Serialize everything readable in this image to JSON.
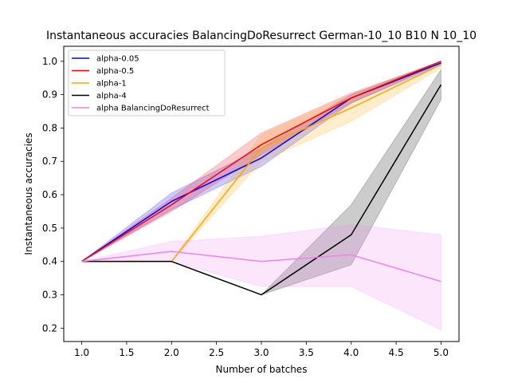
{
  "chart_data": {
    "type": "line",
    "title": "Instantaneous accuracies BalancingDoResurrect German-10_10 B10 N 10_10",
    "xlabel": "Number of batches",
    "ylabel": "Instantaneous accuracies",
    "xlim": [
      0.8,
      5.2
    ],
    "ylim": [
      0.16,
      1.045
    ],
    "xticks": [
      1.0,
      1.5,
      2.0,
      2.5,
      3.0,
      3.5,
      4.0,
      4.5,
      5.0
    ],
    "xtick_labels": [
      "1.0",
      "1.5",
      "2.0",
      "2.5",
      "3.0",
      "3.5",
      "4.0",
      "4.5",
      "5.0"
    ],
    "yticks": [
      0.2,
      0.3,
      0.4,
      0.5,
      0.6,
      0.7,
      0.8,
      0.9,
      1.0
    ],
    "ytick_labels": [
      "0.2",
      "0.3",
      "0.4",
      "0.5",
      "0.6",
      "0.7",
      "0.8",
      "0.9",
      "1.0"
    ],
    "grid": false,
    "legend_position": "top-left",
    "x": [
      1,
      2,
      3,
      4,
      5
    ],
    "series": [
      {
        "name": "alpha-0.05",
        "color": "#0000ff",
        "values": [
          0.4,
          0.58,
          0.71,
          0.89,
          0.995
        ],
        "lower": [
          0.4,
          0.555,
          0.685,
          0.875,
          0.99
        ],
        "upper": [
          0.4,
          0.605,
          0.74,
          0.9,
          1.0
        ]
      },
      {
        "name": "alpha-0.5",
        "color": "#ff0000",
        "values": [
          0.4,
          0.57,
          0.75,
          0.89,
          1.0
        ],
        "lower": [
          0.4,
          0.55,
          0.72,
          0.875,
          0.995
        ],
        "upper": [
          0.4,
          0.59,
          0.785,
          0.905,
          1.0
        ]
      },
      {
        "name": "alpha-1",
        "color": "#ffa500",
        "values": [
          0.4,
          0.4,
          0.74,
          0.86,
          0.99
        ],
        "lower": [
          0.4,
          0.4,
          0.7,
          0.82,
          0.98
        ],
        "upper": [
          0.4,
          0.4,
          0.78,
          0.9,
          1.0
        ]
      },
      {
        "name": "alpha-4",
        "color": "#000000",
        "values": [
          0.4,
          0.4,
          0.3,
          0.48,
          0.93
        ],
        "lower": [
          0.4,
          0.4,
          0.3,
          0.39,
          0.885
        ],
        "upper": [
          0.4,
          0.4,
          0.3,
          0.57,
          0.975
        ]
      },
      {
        "name": "alpha BalancingDoResurrect",
        "color": "#ee82ee",
        "values": [
          0.4,
          0.43,
          0.4,
          0.42,
          0.34
        ],
        "lower": [
          0.4,
          0.4,
          0.325,
          0.325,
          0.195
        ],
        "upper": [
          0.4,
          0.46,
          0.475,
          0.51,
          0.48
        ]
      }
    ]
  }
}
